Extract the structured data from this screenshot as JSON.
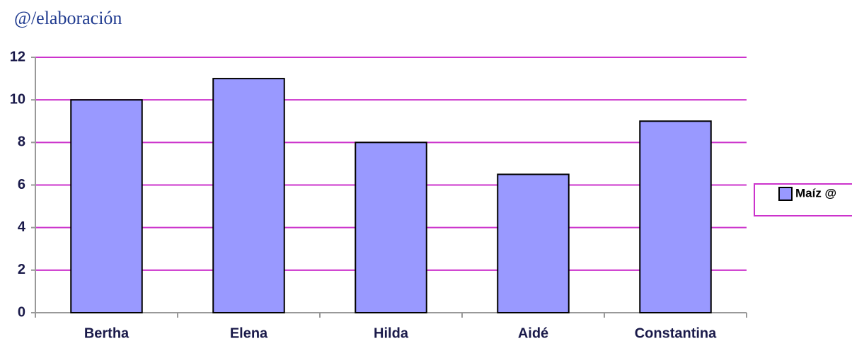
{
  "chart_data": {
    "type": "bar",
    "title": "@/elaboración",
    "categories": [
      "Bertha",
      "Elena",
      "Hilda",
      "Aidé",
      "Constantina"
    ],
    "series": [
      {
        "name": "Maíz @",
        "color": "#9999ff",
        "values": [
          10,
          11,
          8,
          6.5,
          9
        ]
      }
    ],
    "ylim": [
      0,
      12
    ],
    "yticks": [
      0,
      2,
      4,
      6,
      8,
      10,
      12
    ],
    "grid": true,
    "legend": "right"
  }
}
